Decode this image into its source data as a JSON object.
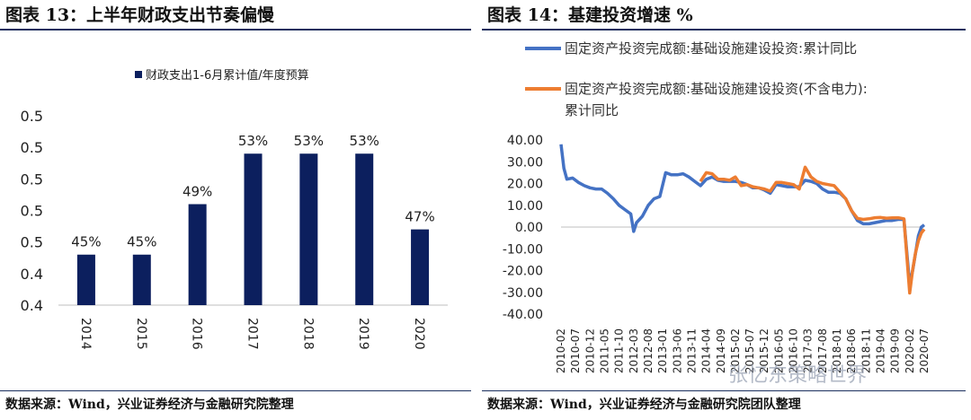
{
  "left": {
    "title": "图表 13：上半年财政支出节奏偏慢",
    "source": "数据来源：Wind，兴业证券经济与金融研究院整理",
    "chart_data": {
      "type": "bar",
      "legend": "财政支出1-6月累计值/年度预算",
      "legend_position": "top",
      "categories": [
        "2014",
        "2015",
        "2016",
        "2017",
        "2018",
        "2019",
        "2020"
      ],
      "values": [
        45,
        45,
        49,
        53,
        53,
        53,
        47
      ],
      "value_labels": [
        "45%",
        "45%",
        "49%",
        "53%",
        "53%",
        "53%",
        "47%"
      ],
      "ylim": [
        41,
        56.5
      ],
      "ytick_values": [
        41,
        43.5,
        46,
        48.5,
        51,
        53.5,
        56
      ],
      "ytick_labels": [
        "0.4",
        "0.4",
        "0.5",
        "0.5",
        "0.5",
        "0.5",
        "0.5"
      ],
      "bar_color": "#0c1f5e",
      "grid": false
    }
  },
  "right": {
    "title": "图表 14：基建投资增速 %",
    "source": "数据来源：Wind，兴业证券经济与金融研究院团队整理",
    "watermark": "张忆东策略世界",
    "chart_data": {
      "type": "line",
      "ylim": [
        -40,
        40
      ],
      "yticks": [
        40,
        30,
        20,
        10,
        0,
        -10,
        -20,
        -30,
        -40
      ],
      "ytick_labels": [
        "40.00",
        "30.00",
        "20.00",
        "10.00",
        "0.00",
        "-10.00",
        "-20.00",
        "-30.00",
        "-40.00"
      ],
      "xtick_labels": [
        "2010-02",
        "2010-07",
        "2010-12",
        "2011-05",
        "2011-10",
        "2012-03",
        "2012-08",
        "2013-01",
        "2013-06",
        "2013-11",
        "2014-04",
        "2014-09",
        "2015-02",
        "2015-07",
        "2015-12",
        "2016-05",
        "2016-10",
        "2017-03",
        "2017-08",
        "2018-01",
        "2018-06",
        "2018-11",
        "2019-04",
        "2019-09",
        "2020-02",
        "2020-07"
      ],
      "legend_position": "top",
      "grid": false,
      "series": [
        {
          "name": "固定资产投资完成额:基础设施建设投资:累计同比",
          "color": "#4472c4",
          "points": [
            [
              "2010-02",
              38
            ],
            [
              "2010-03",
              27
            ],
            [
              "2010-04",
              22
            ],
            [
              "2010-06",
              22.5
            ],
            [
              "2010-08",
              20.5
            ],
            [
              "2010-10",
              19
            ],
            [
              "2010-12",
              18
            ],
            [
              "2011-02",
              17.5
            ],
            [
              "2011-04",
              17.5
            ],
            [
              "2011-06",
              15.5
            ],
            [
              "2011-08",
              13
            ],
            [
              "2011-10",
              10
            ],
            [
              "2011-12",
              8
            ],
            [
              "2012-02",
              6
            ],
            [
              "2012-03",
              -2
            ],
            [
              "2012-04",
              2
            ],
            [
              "2012-06",
              5
            ],
            [
              "2012-08",
              10
            ],
            [
              "2012-10",
              13
            ],
            [
              "2012-12",
              14
            ],
            [
              "2013-02",
              25
            ],
            [
              "2013-04",
              24
            ],
            [
              "2013-06",
              24
            ],
            [
              "2013-08",
              24.5
            ],
            [
              "2013-10",
              23
            ],
            [
              "2013-12",
              21
            ],
            [
              "2014-02",
              19
            ],
            [
              "2014-04",
              22
            ],
            [
              "2014-06",
              23
            ],
            [
              "2014-08",
              21.5
            ],
            [
              "2014-10",
              21
            ],
            [
              "2014-12",
              21
            ],
            [
              "2015-02",
              21
            ],
            [
              "2015-04",
              20.5
            ],
            [
              "2015-06",
              19.5
            ],
            [
              "2015-08",
              18
            ],
            [
              "2015-10",
              18
            ],
            [
              "2015-12",
              17
            ],
            [
              "2016-02",
              15.5
            ],
            [
              "2016-04",
              19.5
            ],
            [
              "2016-06",
              19
            ],
            [
              "2016-08",
              18.5
            ],
            [
              "2016-10",
              18.5
            ],
            [
              "2016-12",
              18.5
            ],
            [
              "2017-02",
              21.5
            ],
            [
              "2017-04",
              21
            ],
            [
              "2017-06",
              20
            ],
            [
              "2017-08",
              17.5
            ],
            [
              "2017-10",
              16
            ],
            [
              "2017-12",
              16
            ],
            [
              "2018-02",
              15.5
            ],
            [
              "2018-04",
              13
            ],
            [
              "2018-06",
              7.5
            ],
            [
              "2018-08",
              3
            ],
            [
              "2018-10",
              1.5
            ],
            [
              "2018-12",
              1.5
            ],
            [
              "2019-02",
              2
            ],
            [
              "2019-04",
              2.5
            ],
            [
              "2019-06",
              3
            ],
            [
              "2019-08",
              3
            ],
            [
              "2019-10",
              3.5
            ],
            [
              "2019-12",
              3.5
            ],
            [
              "2020-02",
              -26.5
            ],
            [
              "2020-03",
              -20
            ],
            [
              "2020-04",
              -12
            ],
            [
              "2020-05",
              -4
            ],
            [
              "2020-06",
              0
            ],
            [
              "2020-07",
              1
            ]
          ]
        },
        {
          "name": "固定资产投资完成额:基础设施建设投资(不含电力):累计同比",
          "color": "#ed7d31",
          "points": [
            [
              "2014-02",
              21
            ],
            [
              "2014-04",
              25
            ],
            [
              "2014-06",
              24.5
            ],
            [
              "2014-08",
              22
            ],
            [
              "2014-10",
              22
            ],
            [
              "2014-12",
              21.5
            ],
            [
              "2015-02",
              23
            ],
            [
              "2015-04",
              19
            ],
            [
              "2015-06",
              19.5
            ],
            [
              "2015-08",
              18.5
            ],
            [
              "2015-10",
              18
            ],
            [
              "2015-12",
              17.5
            ],
            [
              "2016-02",
              16.5
            ],
            [
              "2016-04",
              20.5
            ],
            [
              "2016-06",
              20.5
            ],
            [
              "2016-08",
              20
            ],
            [
              "2016-10",
              19.5
            ],
            [
              "2016-12",
              17.5
            ],
            [
              "2017-02",
              27.5
            ],
            [
              "2017-04",
              23
            ],
            [
              "2017-06",
              21
            ],
            [
              "2017-08",
              20
            ],
            [
              "2017-10",
              19.5
            ],
            [
              "2017-12",
              19
            ],
            [
              "2018-02",
              16
            ],
            [
              "2018-04",
              13
            ],
            [
              "2018-06",
              7.5
            ],
            [
              "2018-08",
              4
            ],
            [
              "2018-10",
              3.5
            ],
            [
              "2018-12",
              3.8
            ],
            [
              "2019-02",
              4.3
            ],
            [
              "2019-04",
              4.4
            ],
            [
              "2019-06",
              4.1
            ],
            [
              "2019-08",
              4.2
            ],
            [
              "2019-10",
              4.3
            ],
            [
              "2019-12",
              3.8
            ],
            [
              "2020-02",
              -30.3
            ],
            [
              "2020-03",
              -19.7
            ],
            [
              "2020-04",
              -11.8
            ],
            [
              "2020-05",
              -6.3
            ],
            [
              "2020-06",
              -2.7
            ],
            [
              "2020-07",
              -1
            ]
          ]
        }
      ]
    }
  }
}
